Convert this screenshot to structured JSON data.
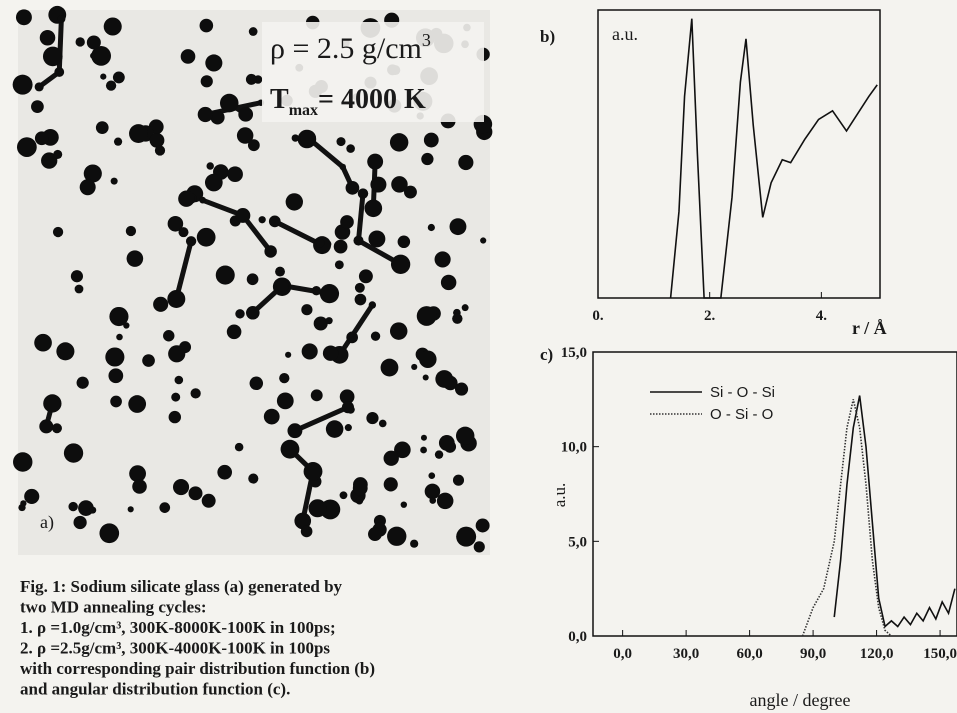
{
  "panel_a": {
    "density": {
      "text": "ρ = 2.5 g/cm",
      "superscript": "3"
    },
    "temperature": {
      "symbol": "T",
      "subscript": "max",
      "text": "= 4000 K"
    },
    "label": "a)"
  },
  "chart_data": [
    {
      "type": "line",
      "panel_label": "b)",
      "y_label": "a.u.",
      "x_label": "r / Å",
      "x": [
        1.3,
        1.45,
        1.55,
        1.68,
        1.78,
        1.9,
        2.2,
        2.4,
        2.55,
        2.65,
        2.78,
        2.95,
        3.1,
        3.3,
        3.45,
        3.7,
        3.95,
        4.2,
        4.45,
        4.65,
        4.85,
        5.0
      ],
      "values": [
        0,
        0.3,
        0.7,
        0.97,
        0.5,
        0,
        0,
        0.35,
        0.75,
        0.9,
        0.6,
        0.28,
        0.4,
        0.48,
        0.47,
        0.55,
        0.62,
        0.65,
        0.58,
        0.64,
        0.7,
        0.74
      ],
      "color": "#111111",
      "xlim": [
        0,
        5.05
      ],
      "ylim": [
        0,
        1
      ],
      "xticks": [
        {
          "value": 0,
          "label": "0."
        },
        {
          "value": 2,
          "label": "2."
        },
        {
          "value": 4,
          "label": "4."
        }
      ]
    },
    {
      "type": "line",
      "panel_label": "c)",
      "y_label": "a.u.",
      "x_label": "angle / degree",
      "xlim": [
        -14,
        158
      ],
      "ylim": [
        0,
        15
      ],
      "xticks": [
        {
          "value": 0,
          "label": "0,0"
        },
        {
          "value": 30,
          "label": "30,0"
        },
        {
          "value": 60,
          "label": "60,0"
        },
        {
          "value": 90,
          "label": "90,0"
        },
        {
          "value": 120,
          "label": "120,0"
        },
        {
          "value": 150,
          "label": "150,0"
        }
      ],
      "yticks": [
        {
          "value": 0,
          "label": "0,0"
        },
        {
          "value": 5,
          "label": "5,0"
        },
        {
          "value": 10,
          "label": "10,0"
        },
        {
          "value": 15,
          "label": "15,0"
        }
      ],
      "series": [
        {
          "name": "Si - O - Si",
          "color": "#111111",
          "dash": "solid",
          "x": [
            100,
            103,
            106,
            109,
            112,
            115,
            118,
            121,
            124,
            127,
            130,
            133,
            136,
            139,
            142,
            145,
            148,
            151,
            154,
            157
          ],
          "values": [
            1,
            4,
            8,
            11,
            12.7,
            10,
            6,
            2,
            0.5,
            0.8,
            0.5,
            1,
            0.6,
            1.2,
            0.8,
            1.5,
            0.9,
            1.8,
            1.2,
            2.5
          ]
        },
        {
          "name": "O - Si - O",
          "color": "#333333",
          "dash": "dotted",
          "x": [
            85,
            90,
            95,
            100,
            103,
            106,
            109,
            112,
            115,
            118,
            121,
            124,
            127
          ],
          "values": [
            0,
            1.5,
            2.5,
            5,
            8,
            11,
            12.5,
            11,
            8,
            4,
            1.5,
            0.3,
            0
          ]
        }
      ]
    }
  ],
  "caption": {
    "lines": [
      "Fig. 1: Sodium silicate glass (a) generated by",
      "two MD annealing cycles:",
      "1. ρ =1.0g/cm³, 300K-8000K-100K in 100ps;",
      "2. ρ =2.5g/cm³, 300K-4000K-100K in 100ps",
      "with corresponding pair distribution function (b)",
      "and angular distribution function (c)."
    ]
  }
}
